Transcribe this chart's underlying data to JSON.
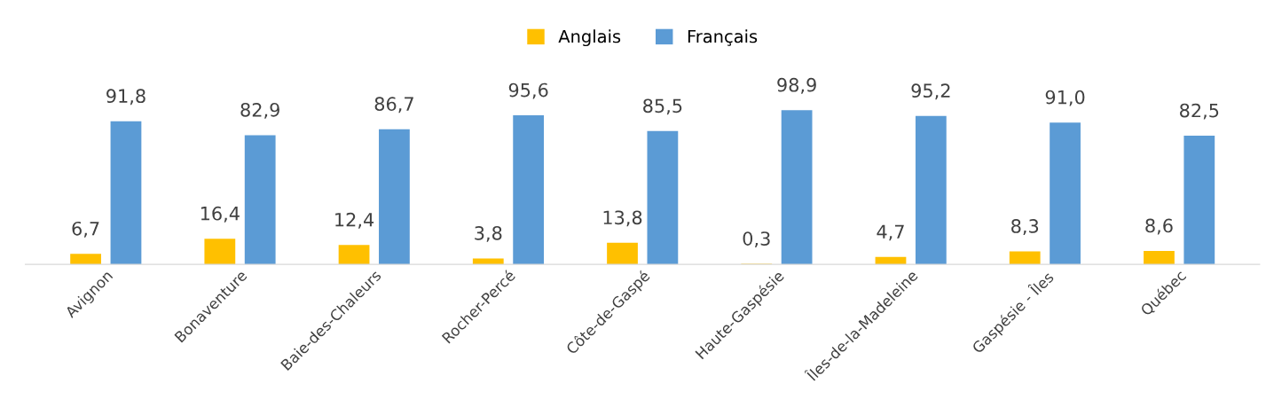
{
  "chart_data": {
    "type": "bar",
    "categories": [
      "Avignon",
      "Bonaventure",
      "Baie-des-Chaleurs",
      "Rocher-Percé",
      "Côte-de-Gaspé",
      "Haute-Gaspésie",
      "Îles-de-la-Madeleine",
      "Gaspésie - Îles",
      "Québec"
    ],
    "series": [
      {
        "name": "Anglais",
        "color": "#ffc000",
        "values": [
          6.7,
          16.4,
          12.4,
          3.8,
          13.8,
          0.3,
          4.7,
          8.3,
          8.6
        ],
        "value_labels": [
          "6,7",
          "16,4",
          "12,4",
          "3,8",
          "13,8",
          "0,3",
          "4,7",
          "8,3",
          "8,6"
        ]
      },
      {
        "name": "Français",
        "color": "#5b9bd5",
        "values": [
          91.8,
          82.9,
          86.7,
          95.6,
          85.5,
          98.9,
          95.2,
          91.0,
          82.5
        ],
        "value_labels": [
          "91,8",
          "82,9",
          "86,7",
          "95,6",
          "85,5",
          "98,9",
          "95,2",
          "91,0",
          "82,5"
        ]
      }
    ],
    "legend": "top",
    "grid": false,
    "tick_labels": "x"
  }
}
